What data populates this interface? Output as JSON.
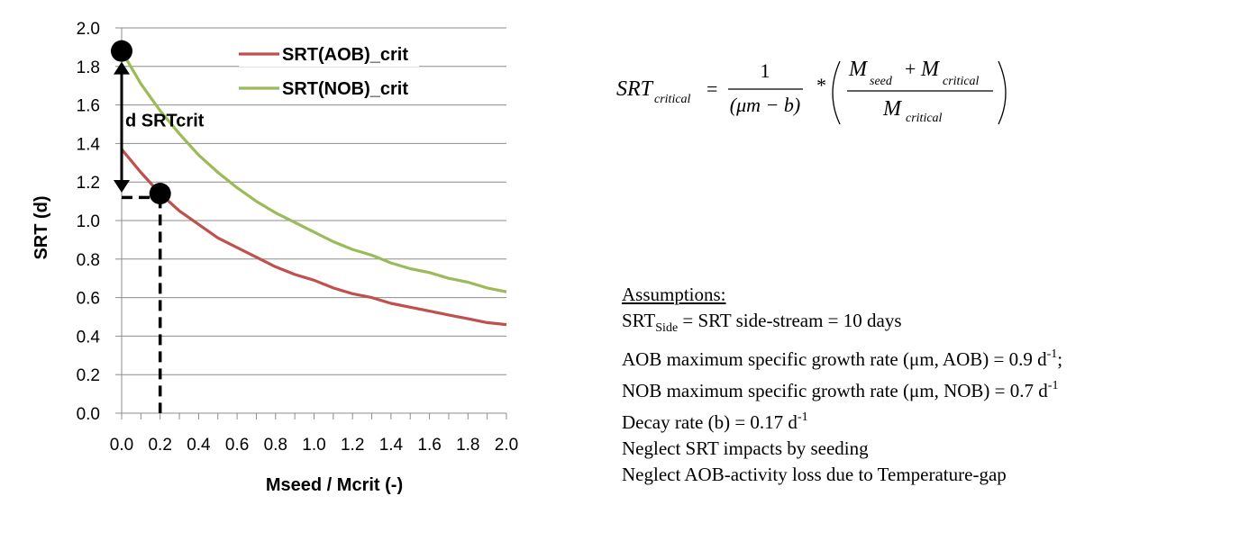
{
  "chart_data": {
    "type": "line",
    "xlabel": "Mseed / Mcrit (-)",
    "ylabel": "SRT (d)",
    "xlim": [
      0,
      2
    ],
    "ylim": [
      0,
      2
    ],
    "x_ticks": [
      "0.0",
      "0.2",
      "0.4",
      "0.6",
      "0.8",
      "1.0",
      "1.2",
      "1.4",
      "1.6",
      "1.8",
      "2.0"
    ],
    "y_ticks": [
      "0.0",
      "0.2",
      "0.4",
      "0.6",
      "0.8",
      "1.0",
      "1.2",
      "1.4",
      "1.6",
      "1.8",
      "2.0"
    ],
    "grid": "horizontal",
    "legend_position": "top-right",
    "series": [
      {
        "name": "SRT(AOB)_crit",
        "color": "#c0504d",
        "x": [
          0,
          0.1,
          0.2,
          0.3,
          0.4,
          0.5,
          0.6,
          0.7,
          0.8,
          0.9,
          1.0,
          1.1,
          1.2,
          1.3,
          1.4,
          1.5,
          1.6,
          1.7,
          1.8,
          1.9,
          2.0
        ],
        "y": [
          1.37,
          1.25,
          1.14,
          1.05,
          0.98,
          0.91,
          0.86,
          0.81,
          0.76,
          0.72,
          0.69,
          0.65,
          0.62,
          0.6,
          0.57,
          0.55,
          0.53,
          0.51,
          0.49,
          0.47,
          0.46
        ]
      },
      {
        "name": "SRT(NOB)_crit",
        "color": "#9bbb59",
        "x": [
          0,
          0.1,
          0.2,
          0.3,
          0.4,
          0.5,
          0.6,
          0.7,
          0.8,
          0.9,
          1.0,
          1.1,
          1.2,
          1.3,
          1.4,
          1.5,
          1.6,
          1.7,
          1.8,
          1.9,
          2.0
        ],
        "y": [
          1.88,
          1.71,
          1.57,
          1.45,
          1.34,
          1.25,
          1.17,
          1.1,
          1.04,
          0.99,
          0.94,
          0.89,
          0.85,
          0.82,
          0.78,
          0.75,
          0.73,
          0.7,
          0.68,
          0.65,
          0.63
        ]
      }
    ],
    "markers": [
      {
        "x": 0.0,
        "y": 1.88
      },
      {
        "x": 0.2,
        "y": 1.14
      }
    ],
    "annotation": {
      "label": "d SRTcrit",
      "from": {
        "x": 0.0,
        "y": 1.88
      },
      "to": {
        "x": 0.0,
        "y": 1.14
      }
    },
    "dashed_guides": [
      {
        "from": {
          "x": 0.0,
          "y": 1.12
        },
        "to": {
          "x": 0.2,
          "y": 1.12
        }
      },
      {
        "from": {
          "x": 0.2,
          "y": 1.12
        },
        "to": {
          "x": 0.2,
          "y": 0.0
        }
      }
    ]
  },
  "formula": {
    "lhs": "SRT",
    "lhs_sub": "critical",
    "equals": "=",
    "numerator": "1",
    "denominator": "(μm − b)",
    "times": "*",
    "frac2_num_a": "M",
    "frac2_num_a_sub": "seed",
    "frac2_plus": "+",
    "frac2_num_b": "M",
    "frac2_num_b_sub": "critical",
    "frac2_den": "M",
    "frac2_den_sub": "critical"
  },
  "assumptions": {
    "title": "Assumptions:",
    "l1_a": "SRT",
    "l1_sub": "Side",
    "l1_b": " = SRT side-stream = 10 days",
    "l2_a": "AOB maximum specific growth rate (μm, AOB) = 0.9 d",
    "l2_sup": "-1",
    "l2_b": ";",
    "l3_a": "NOB maximum specific growth rate (μm, NOB) = 0.7 d",
    "l3_sup": "-1",
    "l4_a": "Decay rate (b) = 0.17 d",
    "l4_sup": "-1",
    "l5": "Neglect SRT impacts by seeding",
    "l6": "Neglect AOB-activity loss due to Temperature-gap"
  }
}
